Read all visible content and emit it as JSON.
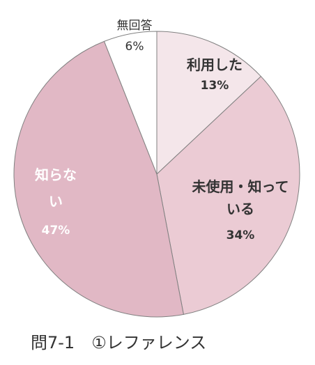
{
  "chart_data": {
    "type": "pie",
    "title": "問7-1　①レファレンス",
    "start_angle_deg": 0,
    "direction": "clockwise",
    "slices": [
      {
        "label_lines": [
          "利用した"
        ],
        "value": 13,
        "value_label": "13%",
        "color": "#f4e6ea",
        "text_color": "#333333",
        "label_placement": "inside"
      },
      {
        "label_lines": [
          "未使用・知って",
          "いる"
        ],
        "value": 34,
        "value_label": "34%",
        "color": "#ebcbd4",
        "text_color": "#333333",
        "label_placement": "inside"
      },
      {
        "label_lines": [
          "知らな",
          "い"
        ],
        "value": 47,
        "value_label": "47%",
        "color": "#e1b8c5",
        "text_color": "#ffffff",
        "label_placement": "inside"
      },
      {
        "label_lines": [
          "無回答"
        ],
        "value": 6,
        "value_label": "6%",
        "color": "#ffffff",
        "text_color": "#333333",
        "label_placement": "outside-top"
      }
    ],
    "slice_border_color": "#808080"
  }
}
